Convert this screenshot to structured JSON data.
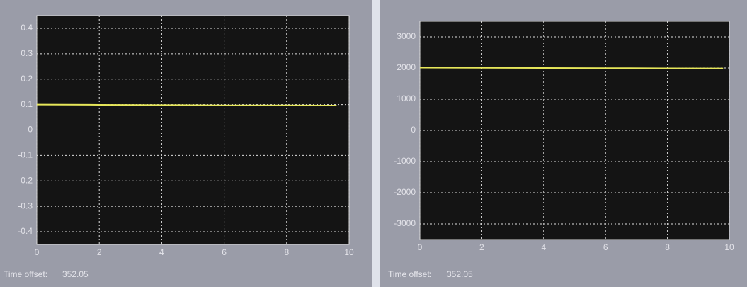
{
  "chart_data": [
    {
      "type": "line",
      "xlim": [
        0,
        10
      ],
      "xticks": [
        0,
        2,
        4,
        6,
        8,
        10
      ],
      "ylim": [
        -0.45,
        0.45
      ],
      "yticks": [
        -0.4,
        -0.3,
        -0.2,
        -0.1,
        0,
        0.1,
        0.2,
        0.3,
        0.4
      ],
      "grid": true,
      "x": [
        0,
        2,
        4,
        6,
        8,
        9.6
      ],
      "series": [
        {
          "color": "#e6e65a",
          "values": [
            0.1,
            0.099,
            0.098,
            0.097,
            0.097,
            0.096
          ]
        }
      ],
      "time_offset_label": "Time offset:",
      "time_offset": 352.05
    },
    {
      "type": "line",
      "xlim": [
        0,
        10
      ],
      "xticks": [
        0,
        2,
        4,
        6,
        8,
        10
      ],
      "ylim": [
        -3500,
        3500
      ],
      "yticks": [
        -3000,
        -2000,
        -1000,
        0,
        1000,
        2000,
        3000
      ],
      "grid": true,
      "x": [
        0,
        2,
        4,
        6,
        8,
        9.8
      ],
      "series": [
        {
          "color": "#e6e65a",
          "values": [
            2010,
            2005,
            2000,
            1995,
            1990,
            1985
          ]
        }
      ],
      "time_offset_label": "Time offset:",
      "time_offset": 352.05
    }
  ]
}
